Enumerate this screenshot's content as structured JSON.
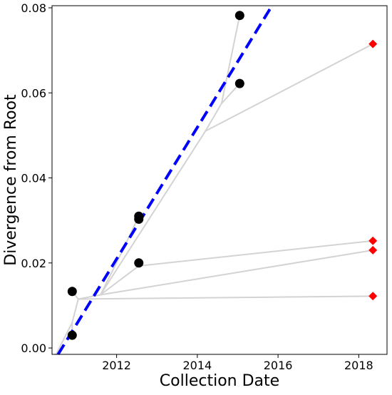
{
  "chart_data": {
    "type": "scatter",
    "title": "",
    "xlabel": "Collection Date",
    "ylabel": "Divergence from Root",
    "xlim": [
      2010.4,
      2018.7
    ],
    "ylim": [
      -0.0015,
      0.0805
    ],
    "x_ticks": [
      2012,
      2014,
      2016,
      2018
    ],
    "x_tick_labels": [
      "2012",
      "2014",
      "2016",
      "2018"
    ],
    "y_ticks": [
      0.0,
      0.02,
      0.04,
      0.06,
      0.08
    ],
    "y_tick_labels": [
      "0.00",
      "0.02",
      "0.04",
      "0.06",
      "0.08"
    ],
    "grid": false,
    "legend": "none",
    "colors": {
      "tree": "#d3d3d3",
      "sampled_tips": "#000000",
      "query_tips": "#ff0000",
      "regression": "#0000ff"
    },
    "tree_edges": [
      {
        "from": [
          2010.5,
          -0.0015
        ],
        "to": [
          2010.9,
          0.006
        ]
      },
      {
        "from": [
          2010.9,
          0.006
        ],
        "to": [
          2010.9,
          0.003
        ]
      },
      {
        "from": [
          2010.9,
          0.006
        ],
        "to": [
          2011.05,
          0.0115
        ]
      },
      {
        "from": [
          2011.05,
          0.0115
        ],
        "to": [
          2010.9,
          0.0133
        ]
      },
      {
        "from": [
          2011.05,
          0.0115
        ],
        "to": [
          2018.35,
          0.0122
        ]
      },
      {
        "from": [
          2011.05,
          0.0115
        ],
        "to": [
          2011.6,
          0.0125
        ]
      },
      {
        "from": [
          2011.6,
          0.0125
        ],
        "to": [
          2018.35,
          0.023
        ]
      },
      {
        "from": [
          2011.6,
          0.0125
        ],
        "to": [
          2012.05,
          0.021
        ]
      },
      {
        "from": [
          2012.05,
          0.021
        ],
        "to": [
          2012.55,
          0.031
        ]
      },
      {
        "from": [
          2012.55,
          0.031
        ],
        "to": [
          2012.55,
          0.0303
        ]
      },
      {
        "from": [
          2011.6,
          0.0125
        ],
        "to": [
          2012.55,
          0.0193
        ]
      },
      {
        "from": [
          2012.55,
          0.0193
        ],
        "to": [
          2012.55,
          0.02
        ]
      },
      {
        "from": [
          2012.55,
          0.0193
        ],
        "to": [
          2018.35,
          0.0252
        ]
      },
      {
        "from": [
          2011.6,
          0.0125
        ],
        "to": [
          2014.2,
          0.051
        ]
      },
      {
        "from": [
          2014.2,
          0.051
        ],
        "to": [
          2018.35,
          0.0715
        ]
      },
      {
        "from": [
          2014.2,
          0.051
        ],
        "to": [
          2014.6,
          0.0575
        ]
      },
      {
        "from": [
          2014.6,
          0.0575
        ],
        "to": [
          2015.05,
          0.0622
        ]
      },
      {
        "from": [
          2014.6,
          0.0575
        ],
        "to": [
          2015.05,
          0.0782
        ]
      }
    ],
    "series": [
      {
        "marker": "circle",
        "x": [
          2010.9,
          2010.9,
          2012.55,
          2012.55,
          2012.55,
          2015.05,
          2015.05
        ],
        "y": [
          0.003,
          0.0133,
          0.02,
          0.0303,
          0.031,
          0.0622,
          0.0782
        ]
      },
      {
        "marker": "diamond",
        "x": [
          2018.35,
          2018.35,
          2018.35,
          2018.35
        ],
        "y": [
          0.0122,
          0.023,
          0.0252,
          0.0715
        ]
      }
    ],
    "regression_line": {
      "style": "dashed",
      "x": [
        2010.55,
        2015.85
      ],
      "y": [
        -0.0015,
        0.0805
      ]
    }
  }
}
